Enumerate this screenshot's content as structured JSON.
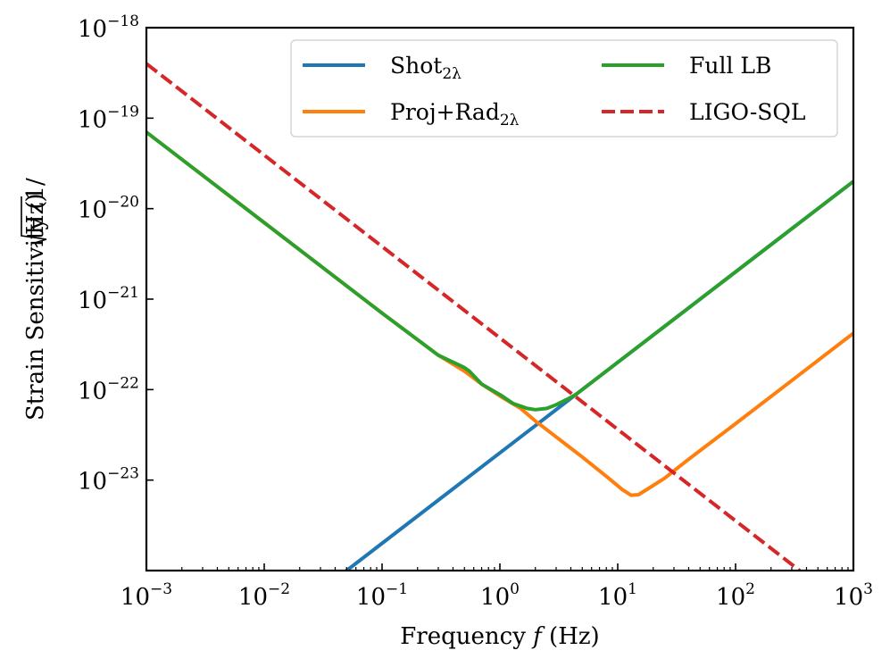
{
  "chart_data": {
    "type": "line",
    "x_scale": "log",
    "y_scale": "log",
    "xlim": [
      0.001,
      1000
    ],
    "ylim": [
      1e-24,
      1e-18
    ],
    "grid": false,
    "legend_placement": "top-right",
    "xlabel": {
      "main": "Frequency ",
      "italic": "f",
      "unit": " (Hz)"
    },
    "ylabel": {
      "main": "Strain Sensitivity (1/",
      "radical": "Hz",
      "close": ")"
    },
    "x_ticks": [
      {
        "value": 0.001,
        "base": "10",
        "exp": "−3"
      },
      {
        "value": 0.01,
        "base": "10",
        "exp": "−2"
      },
      {
        "value": 0.1,
        "base": "10",
        "exp": "−1"
      },
      {
        "value": 1,
        "base": "10",
        "exp": "0"
      },
      {
        "value": 10,
        "base": "10",
        "exp": "1"
      },
      {
        "value": 100,
        "base": "10",
        "exp": "2"
      },
      {
        "value": 1000,
        "base": "10",
        "exp": "3"
      }
    ],
    "y_ticks": [
      {
        "value": 1e-23,
        "base": "10",
        "exp": "−23"
      },
      {
        "value": 1e-22,
        "base": "10",
        "exp": "−22"
      },
      {
        "value": 1e-21,
        "base": "10",
        "exp": "−21"
      },
      {
        "value": 1e-20,
        "base": "10",
        "exp": "−20"
      },
      {
        "value": 1e-19,
        "base": "10",
        "exp": "−19"
      },
      {
        "value": 1e-18,
        "base": "10",
        "exp": "−18"
      }
    ],
    "series": [
      {
        "name": "Shot",
        "name_sub": "2λ",
        "color": "#1f77b4",
        "dash": "solid",
        "x": [
          0.05,
          0.1,
          0.5,
          1,
          2,
          4.5,
          10,
          100,
          1000
        ],
        "y": [
          1e-24,
          2e-24,
          1e-23,
          2e-23,
          4e-23,
          9e-23,
          2e-22,
          2e-21,
          2e-20
        ]
      },
      {
        "name": "Proj+Rad",
        "name_sub": "2λ",
        "color": "#ff7f0e",
        "dash": "solid",
        "x": [
          0.001,
          0.01,
          0.1,
          0.3,
          0.5,
          0.7,
          1,
          1.5,
          2,
          3,
          5,
          8,
          11,
          13,
          15,
          18,
          25,
          40,
          100,
          1000
        ],
        "y": [
          7e-20,
          7e-21,
          7e-22,
          2.4e-22,
          1.6e-22,
          1.15e-22,
          8.5e-23,
          6.2e-23,
          4.5e-23,
          3e-23,
          1.8e-23,
          1.1e-23,
          7.8e-24,
          6.8e-24,
          6.9e-24,
          8e-24,
          1.05e-23,
          1.7e-23,
          4.2e-23,
          4.2e-22
        ]
      },
      {
        "name": "Full LB",
        "name_sub": "",
        "color": "#2ca02c",
        "dash": "solid",
        "x": [
          0.001,
          0.01,
          0.1,
          0.3,
          0.5,
          0.55,
          0.7,
          1,
          1.3,
          1.7,
          2,
          2.5,
          3,
          4,
          4.5,
          6,
          10,
          100,
          1000
        ],
        "y": [
          7e-20,
          7e-21,
          7e-22,
          2.4e-22,
          1.75e-22,
          1.6e-22,
          1.15e-22,
          8.8e-23,
          7e-23,
          6.2e-23,
          6e-23,
          6.2e-23,
          6.8e-23,
          8.2e-23,
          9e-23,
          1.2e-22,
          2e-22,
          2e-21,
          2e-20
        ]
      },
      {
        "name": "LIGO-SQL",
        "name_sub": "",
        "color": "#d62728",
        "dash": "dashed",
        "x": [
          0.001,
          350
        ],
        "y": [
          4e-19,
          1e-24
        ]
      }
    ]
  }
}
